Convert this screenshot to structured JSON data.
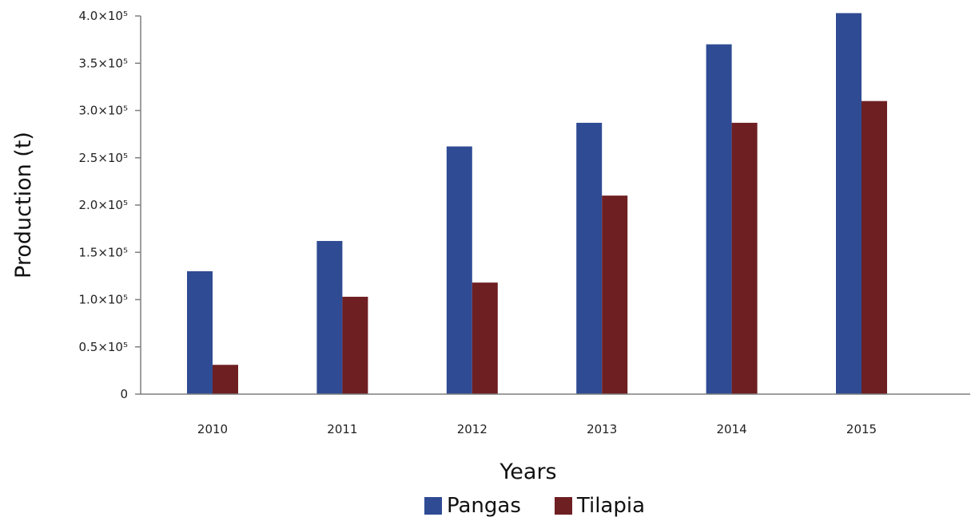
{
  "chart_data": {
    "type": "bar",
    "categories": [
      "2010",
      "2011",
      "2012",
      "2013",
      "2014",
      "2015"
    ],
    "series": [
      {
        "name": "Pangas",
        "color": "#2f4b93",
        "values": [
          130000,
          162000,
          262000,
          287000,
          370000,
          403000
        ]
      },
      {
        "name": "Tilapia",
        "color": "#6e1f22",
        "values": [
          31000,
          103000,
          118000,
          210000,
          287000,
          310000
        ]
      }
    ],
    "title": "",
    "xlabel": "Years",
    "ylabel": "Production (t)",
    "ylim": [
      0,
      400000
    ],
    "yticks": [
      {
        "value": 0,
        "label": "0"
      },
      {
        "value": 50000,
        "label": "0.5×10⁵"
      },
      {
        "value": 100000,
        "label": "1.0×10⁵"
      },
      {
        "value": 150000,
        "label": "1.5×10⁵"
      },
      {
        "value": 200000,
        "label": "2.0×10⁵"
      },
      {
        "value": 250000,
        "label": "2.5×10⁵"
      },
      {
        "value": 300000,
        "label": "3.0×10⁵"
      },
      {
        "value": 350000,
        "label": "3.5×10⁵"
      },
      {
        "value": 400000,
        "label": "4.0×10⁵"
      }
    ],
    "grid": false,
    "legend": "bottom"
  }
}
